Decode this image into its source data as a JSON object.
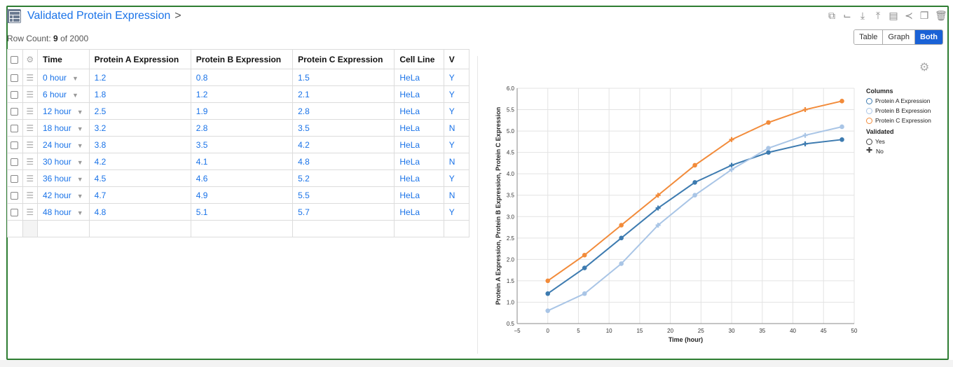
{
  "header": {
    "title": "Validated Protein Expression",
    "chevron": ">",
    "row_count_label": "Row Count:",
    "row_count_shown": "9",
    "row_count_total": "of 2000"
  },
  "toolbar": {
    "icons": [
      "external-link-icon",
      "chart-icon",
      "download-icon",
      "upload-icon",
      "paste-icon",
      "share-icon",
      "copy-icon",
      "trash-icon"
    ],
    "views": [
      "Table",
      "Graph",
      "Both"
    ],
    "active_view": "Both"
  },
  "table": {
    "columns": [
      "Time",
      "Protein A Expression",
      "Protein B Expression",
      "Protein C Expression",
      "Cell Line",
      "V"
    ],
    "rows": [
      [
        "0 hour",
        "1.2",
        "0.8",
        "1.5",
        "HeLa",
        "Y"
      ],
      [
        "6 hour",
        "1.8",
        "1.2",
        "2.1",
        "HeLa",
        "Y"
      ],
      [
        "12 hour",
        "2.5",
        "1.9",
        "2.8",
        "HeLa",
        "Y"
      ],
      [
        "18 hour",
        "3.2",
        "2.8",
        "3.5",
        "HeLa",
        "N"
      ],
      [
        "24 hour",
        "3.8",
        "3.5",
        "4.2",
        "HeLa",
        "Y"
      ],
      [
        "30 hour",
        "4.2",
        "4.1",
        "4.8",
        "HeLa",
        "N"
      ],
      [
        "36 hour",
        "4.5",
        "4.6",
        "5.2",
        "HeLa",
        "Y"
      ],
      [
        "42 hour",
        "4.7",
        "4.9",
        "5.5",
        "HeLa",
        "N"
      ],
      [
        "48 hour",
        "4.8",
        "5.1",
        "5.7",
        "HeLa",
        "Y"
      ]
    ]
  },
  "chart_data": {
    "type": "line",
    "x": [
      0,
      6,
      12,
      18,
      24,
      30,
      36,
      42,
      48
    ],
    "series": [
      {
        "name": "Protein A Expression",
        "values": [
          1.2,
          1.8,
          2.5,
          3.2,
          3.8,
          4.2,
          4.5,
          4.7,
          4.8
        ],
        "color": "#3d7bb0"
      },
      {
        "name": "Protein B Expression",
        "values": [
          0.8,
          1.2,
          1.9,
          2.8,
          3.5,
          4.1,
          4.6,
          4.9,
          5.1
        ],
        "color": "#a9c5e6"
      },
      {
        "name": "Protein C Expression",
        "values": [
          1.5,
          2.1,
          2.8,
          3.5,
          4.2,
          4.8,
          5.2,
          5.5,
          5.7
        ],
        "color": "#f28b3a"
      }
    ],
    "validated": [
      "Yes",
      "Yes",
      "Yes",
      "No",
      "Yes",
      "No",
      "Yes",
      "No",
      "Yes"
    ],
    "xlabel": "Time (hour)",
    "ylabel": "Protein A Expression, Protein B Expression, Protein C Expression",
    "xlim": [
      -5,
      50
    ],
    "ylim": [
      0.5,
      6.0
    ],
    "xticks": [
      "−5",
      "0",
      "5",
      "10",
      "15",
      "20",
      "25",
      "30",
      "35",
      "40",
      "45",
      "50"
    ],
    "yticks": [
      "0.5",
      "1.0",
      "1.5",
      "2.0",
      "2.5",
      "3.0",
      "3.5",
      "4.0",
      "4.5",
      "5.0",
      "5.5",
      "6.0"
    ],
    "grid": true,
    "legend": {
      "position": "right",
      "columns_title": "Columns",
      "validated_title": "Validated",
      "validated_items": [
        "Yes",
        "No"
      ]
    }
  }
}
